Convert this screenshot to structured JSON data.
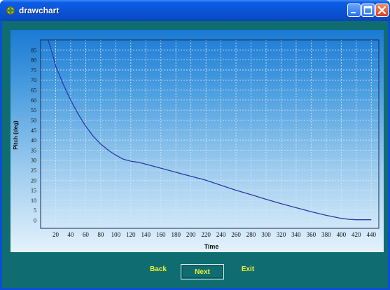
{
  "window": {
    "title": "drawchart"
  },
  "buttons": {
    "back": "Back",
    "next": "Next",
    "exit": "Exit"
  },
  "colors": {
    "titlebar": "#0a54d8",
    "window_bg": "#0f6d72",
    "button_text": "#f2ef2a",
    "line": "#2b3aa6"
  },
  "chart_data": {
    "type": "line",
    "title": "",
    "xlabel": "Time",
    "ylabel": "Pitch (deg)",
    "xlim": [
      0,
      450
    ],
    "ylim": [
      -4,
      90
    ],
    "grid": true,
    "x_ticks": [
      20,
      40,
      60,
      80,
      100,
      120,
      140,
      160,
      180,
      200,
      220,
      240,
      260,
      280,
      300,
      320,
      340,
      360,
      380,
      400,
      420,
      440
    ],
    "y_ticks": [
      0,
      5,
      10,
      15,
      20,
      25,
      30,
      35,
      40,
      45,
      50,
      55,
      60,
      65,
      70,
      75,
      80,
      85
    ],
    "series": [
      {
        "x": [
          10,
          15,
          20,
          30,
          40,
          50,
          60,
          70,
          80,
          90,
          100,
          110,
          120,
          130,
          140,
          160,
          180,
          200,
          220,
          240,
          260,
          280,
          300,
          320,
          340,
          360,
          380,
          400,
          410,
          420,
          440
        ],
        "y": [
          90,
          84,
          77,
          68,
          60,
          53,
          47,
          42,
          38,
          35,
          32.5,
          30.5,
          29.5,
          29,
          28,
          26,
          24,
          22,
          20,
          17.5,
          15,
          12.8,
          10.5,
          8.3,
          6.3,
          4.3,
          2.5,
          1,
          0.5,
          0.3,
          0.3
        ]
      }
    ]
  }
}
